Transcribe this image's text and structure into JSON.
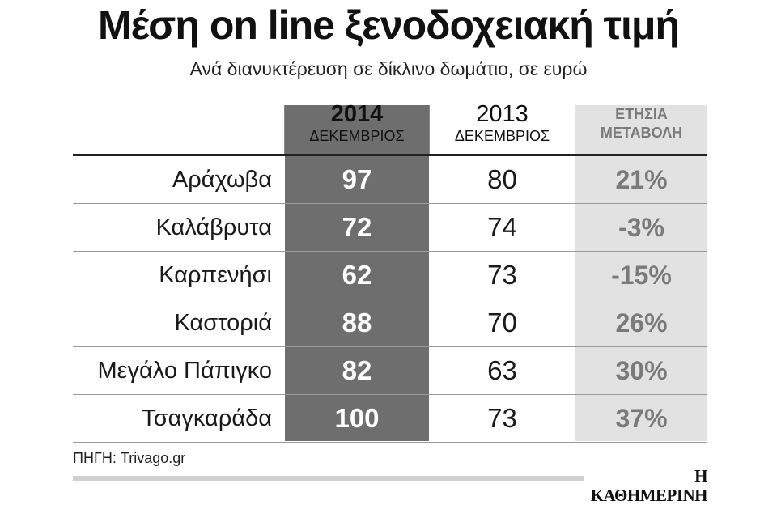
{
  "chart_data": {
    "type": "table",
    "title": "Μέση on line ξενοδοχειακή τιμή",
    "subtitle": "Ανά διανυκτέρευση σε δίκλινο δωμάτιο, σε ευρώ",
    "columns": {
      "y2014": {
        "top": "2014",
        "bottom": "ΔΕΚΕΜΒΡΙΟΣ"
      },
      "y2013": {
        "top": "2013",
        "bottom": "ΔΕΚΕΜΒΡΙΟΣ"
      },
      "change": {
        "top": "ΕΤΗΣΙΑ",
        "bottom": "ΜΕΤΑΒΟΛΗ"
      }
    },
    "rows": [
      {
        "city": "Αράχωβα",
        "v2014": 97,
        "v2013": 80,
        "change": "21%"
      },
      {
        "city": "Καλάβρυτα",
        "v2014": 72,
        "v2013": 74,
        "change": "-3%"
      },
      {
        "city": "Καρπενήσι",
        "v2014": 62,
        "v2013": 73,
        "change": "-15%"
      },
      {
        "city": "Καστοριά",
        "v2014": 88,
        "v2013": 70,
        "change": "26%"
      },
      {
        "city": "Μεγάλο Πάπιγκο",
        "v2014": 82,
        "v2013": 63,
        "change": "30%"
      },
      {
        "city": "Τσαγκαράδα",
        "v2014": 100,
        "v2013": 73,
        "change": "37%"
      }
    ],
    "source": "ΠΗΓΗ: Trivago.gr"
  },
  "brand": "Η ΚΑΘΗΜΕΡΙΝΗ",
  "colors": {
    "col_2014_bg": "#6e6e6e",
    "col_change_bg": "#e2e2e2",
    "change_text": "#7a7a7a"
  }
}
